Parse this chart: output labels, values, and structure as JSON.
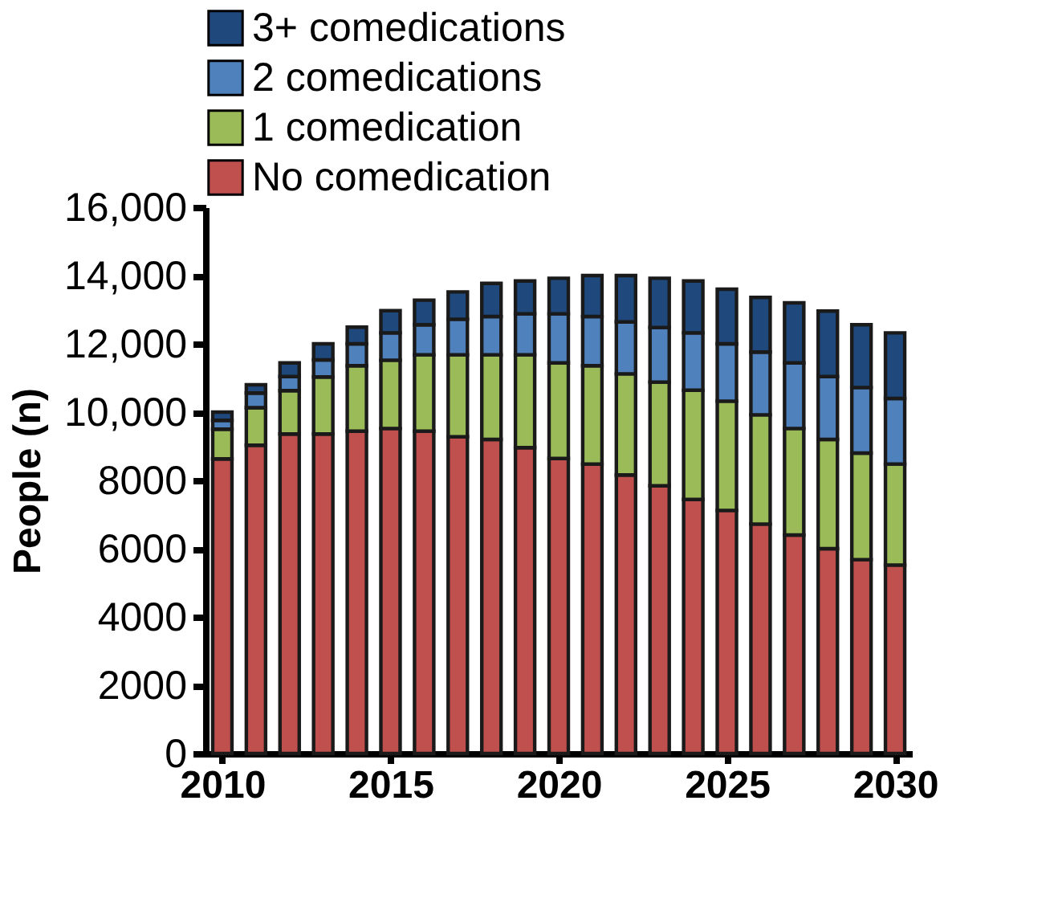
{
  "chart_data": {
    "type": "bar",
    "stacked": true,
    "ylabel": "People (n)",
    "x": [
      2010,
      2011,
      2012,
      2013,
      2014,
      2015,
      2016,
      2017,
      2018,
      2019,
      2020,
      2021,
      2022,
      2023,
      2024,
      2025,
      2026,
      2027,
      2028,
      2029,
      2030
    ],
    "xlim": [
      2009.5,
      2030.5
    ],
    "xticks": [
      2010,
      2015,
      2020,
      2025,
      2030
    ],
    "ylim": [
      0,
      16000
    ],
    "yticks": [
      0,
      2000,
      4000,
      6000,
      8000,
      {
        "value": 10000,
        "label": "10,000"
      },
      {
        "value": 12000,
        "label": "12,000"
      },
      {
        "value": 14000,
        "label": "14,000"
      },
      {
        "value": 16000,
        "label": "16,000"
      }
    ],
    "series": [
      {
        "name": "No comedication",
        "color": "#c0504d",
        "values": [
          8630,
          9030,
          9360,
          9360,
          9440,
          9520,
          9440,
          9280,
          9200,
          8960,
          8640,
          8480,
          8160,
          7840,
          7440,
          7120,
          6720,
          6400,
          6000,
          5680,
          5520
        ]
      },
      {
        "name": "1 comedication",
        "color": "#9bbb59",
        "values": [
          870,
          1100,
          1270,
          1670,
          1920,
          2000,
          2240,
          2400,
          2480,
          2720,
          2800,
          2880,
          2960,
          3040,
          3200,
          3200,
          3200,
          3120,
          3200,
          3120,
          2960
        ]
      },
      {
        "name": "2 comedications",
        "color": "#4f81bd",
        "values": [
          260,
          430,
          410,
          500,
          640,
          800,
          880,
          1040,
          1120,
          1200,
          1440,
          1440,
          1520,
          1600,
          1680,
          1680,
          1840,
          1920,
          1840,
          1920,
          1920
        ]
      },
      {
        "name": "3+ comedications",
        "color": "#1f497d",
        "values": [
          240,
          240,
          400,
          470,
          490,
          650,
          720,
          800,
          970,
          960,
          1040,
          1200,
          1360,
          1440,
          1520,
          1600,
          1600,
          1760,
          1920,
          1840,
          1920
        ]
      }
    ],
    "legend": "top left",
    "grid": false
  }
}
